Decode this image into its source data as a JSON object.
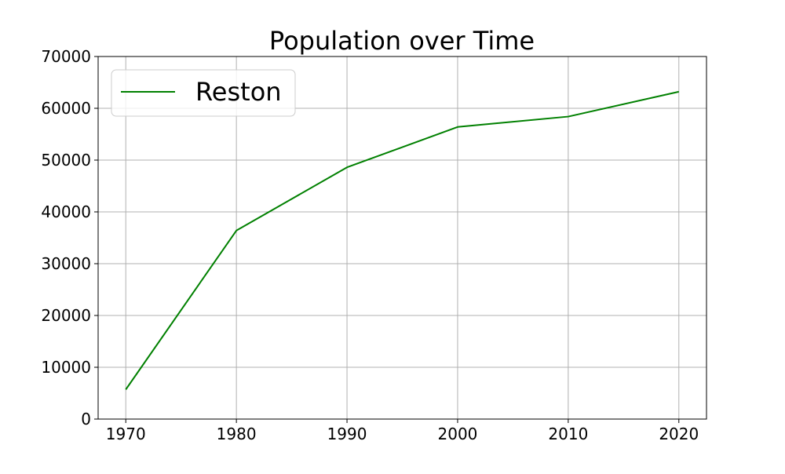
{
  "chart_data": {
    "type": "line",
    "title": "Population over Time",
    "xlabel": "",
    "ylabel": "",
    "x": [
      1970,
      1980,
      1990,
      2000,
      2010,
      2020
    ],
    "xticks": [
      1970,
      1980,
      1990,
      2000,
      2010,
      2020
    ],
    "yticks": [
      0,
      10000,
      20000,
      30000,
      40000,
      50000,
      60000,
      70000
    ],
    "xlim": [
      1967.5,
      2022.5
    ],
    "ylim": [
      0,
      70000
    ],
    "grid": true,
    "legend_position": "upper-left",
    "series": [
      {
        "name": "Reston",
        "color": "#008000",
        "values": [
          5700,
          36400,
          48600,
          56400,
          58400,
          63200
        ]
      }
    ]
  }
}
